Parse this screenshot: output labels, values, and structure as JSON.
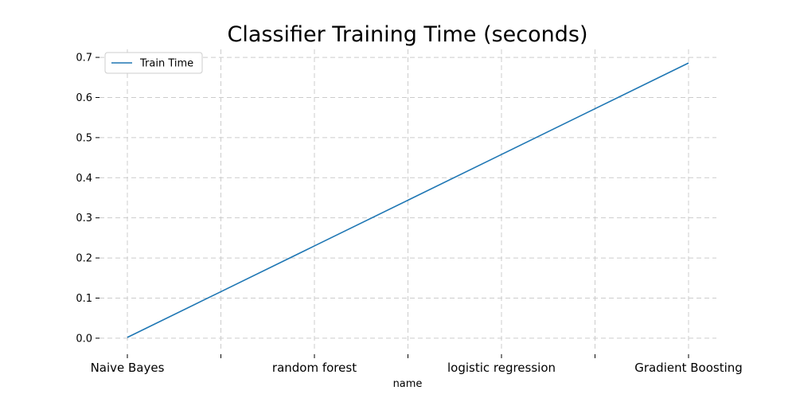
{
  "chart_data": {
    "type": "line",
    "title": "Classifier Training Time (seconds)",
    "xlabel": "name",
    "ylabel": "",
    "categories": [
      "Naive Bayes",
      "",
      "random forest",
      "",
      "logistic regression",
      "",
      "Gradient Boosting"
    ],
    "x_tick_labels": [
      "Naive Bayes",
      "random forest",
      "logistic regression",
      "Gradient Boosting"
    ],
    "y_ticks": [
      "0.0",
      "0.1",
      "0.2",
      "0.3",
      "0.4",
      "0.5",
      "0.6",
      "0.7"
    ],
    "ylim": [
      -0.03,
      0.72
    ],
    "series": [
      {
        "name": "Train Time",
        "color": "#1f77b4",
        "values": [
          0.002,
          0.116,
          0.23,
          0.344,
          0.458,
          0.572,
          0.686
        ]
      }
    ],
    "grid": true,
    "legend_position": "upper-left"
  }
}
